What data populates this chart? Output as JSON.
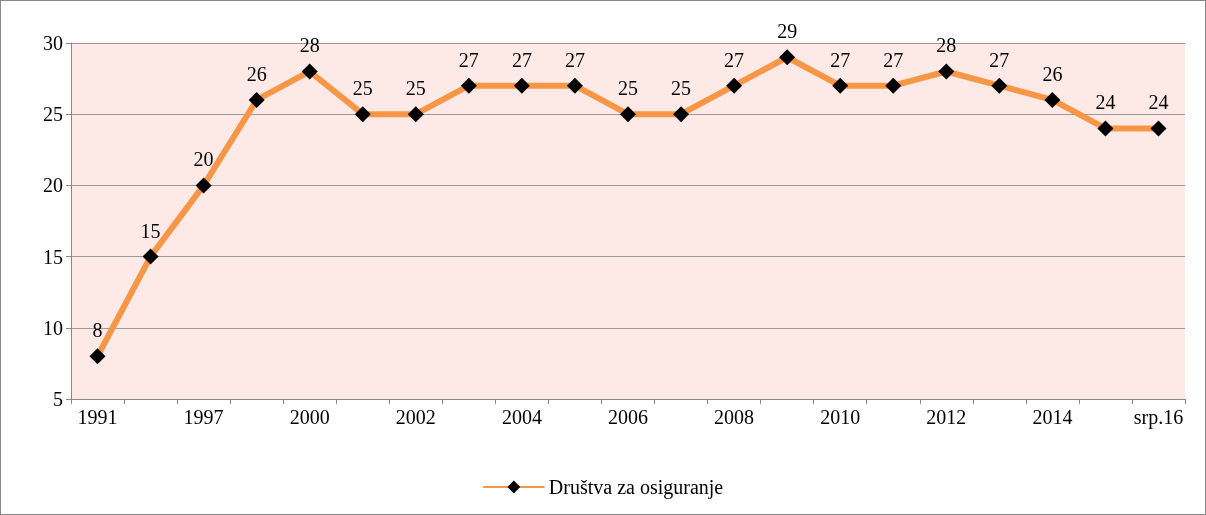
{
  "chart_data": {
    "type": "line",
    "categories": [
      "1991",
      null,
      "1997",
      null,
      "2000",
      null,
      "2002",
      null,
      "2004",
      null,
      "2006",
      null,
      "2008",
      null,
      "2010",
      null,
      "2012",
      null,
      "2014",
      null,
      "srp.16"
    ],
    "series": [
      {
        "name": "Društva za osiguranje",
        "color": "#f79646",
        "values": [
          8,
          15,
          20,
          26,
          28,
          25,
          25,
          27,
          27,
          27,
          25,
          25,
          27,
          29,
          27,
          27,
          28,
          27,
          26,
          24,
          24
        ]
      }
    ],
    "ylim": [
      5,
      30
    ],
    "yticks": [
      5,
      10,
      15,
      20,
      25,
      30
    ],
    "grid": "y",
    "legend": "bottom",
    "marker": "diamond",
    "line_style": "solid",
    "data_labels": true
  }
}
